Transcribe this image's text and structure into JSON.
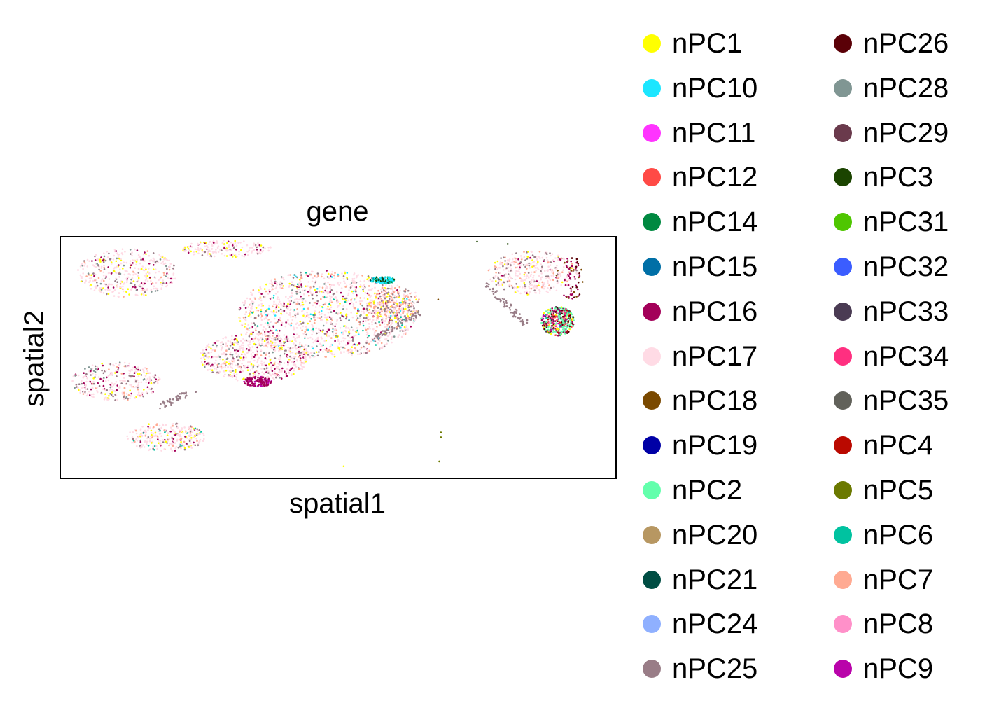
{
  "chart_data": {
    "type": "scatter",
    "title": "gene",
    "xlabel": "spatial1",
    "ylabel": "spatial2",
    "xlim": [
      0,
      100
    ],
    "ylim": [
      0,
      100
    ],
    "grid": false,
    "ticks": false,
    "legend_placement": "right",
    "legend_columns": 2,
    "series": [
      {
        "name": "nPC1",
        "color": "#ffff00"
      },
      {
        "name": "nPC10",
        "color": "#1ce6ff"
      },
      {
        "name": "nPC11",
        "color": "#ff34ff"
      },
      {
        "name": "nPC12",
        "color": "#ff4a46"
      },
      {
        "name": "nPC14",
        "color": "#008941"
      },
      {
        "name": "nPC15",
        "color": "#006fa6"
      },
      {
        "name": "nPC16",
        "color": "#a30059"
      },
      {
        "name": "nPC17",
        "color": "#ffdbe5"
      },
      {
        "name": "nPC18",
        "color": "#7a4900"
      },
      {
        "name": "nPC19",
        "color": "#0000a6"
      },
      {
        "name": "nPC2",
        "color": "#63ffac"
      },
      {
        "name": "nPC20",
        "color": "#b79762"
      },
      {
        "name": "nPC21",
        "color": "#004d43"
      },
      {
        "name": "nPC24",
        "color": "#8fb0ff"
      },
      {
        "name": "nPC25",
        "color": "#997d87"
      },
      {
        "name": "nPC26",
        "color": "#5a0007"
      },
      {
        "name": "nPC28",
        "color": "#809693"
      },
      {
        "name": "nPC29",
        "color": "#6a3a4c"
      },
      {
        "name": "nPC3",
        "color": "#1b4400"
      },
      {
        "name": "nPC31",
        "color": "#4fc601"
      },
      {
        "name": "nPC32",
        "color": "#3b5dff"
      },
      {
        "name": "nPC33",
        "color": "#4a3b53"
      },
      {
        "name": "nPC34",
        "color": "#ff2f80"
      },
      {
        "name": "nPC35",
        "color": "#61615a"
      },
      {
        "name": "nPC4",
        "color": "#ba0900"
      },
      {
        "name": "nPC5",
        "color": "#6b7900"
      },
      {
        "name": "nPC6",
        "color": "#00c2a0"
      },
      {
        "name": "nPC7",
        "color": "#ffaa92"
      },
      {
        "name": "nPC8",
        "color": "#ff90c9"
      },
      {
        "name": "nPC9",
        "color": "#b903aa"
      }
    ],
    "regions": [
      {
        "cx": 12,
        "cy": 85,
        "rx": 9,
        "ry": 10,
        "n": 420,
        "mix": {
          "nPC17": 0.62,
          "nPC16": 0.1,
          "nPC1": 0.1,
          "nPC25": 0.08,
          "nPC7": 0.05,
          "nPC28": 0.05
        }
      },
      {
        "cx": 30,
        "cy": 95,
        "rx": 8,
        "ry": 3.5,
        "n": 180,
        "mix": {
          "nPC17": 0.7,
          "nPC16": 0.1,
          "nPC1": 0.1,
          "nPC25": 0.1
        }
      },
      {
        "cx": 48,
        "cy": 68,
        "rx": 16,
        "ry": 18,
        "n": 1300,
        "mix": {
          "nPC17": 0.52,
          "nPC7": 0.12,
          "nPC1": 0.08,
          "nPC16": 0.08,
          "nPC25": 0.1,
          "nPC6": 0.03,
          "nPC10": 0.03,
          "nPC28": 0.04
        }
      },
      {
        "cx": 35,
        "cy": 50,
        "rx": 10,
        "ry": 10,
        "n": 620,
        "mix": {
          "nPC17": 0.58,
          "nPC16": 0.12,
          "nPC25": 0.12,
          "nPC1": 0.08,
          "nPC7": 0.05,
          "nPC28": 0.05
        }
      },
      {
        "cx": 60,
        "cy": 72,
        "rx": 5,
        "ry": 8,
        "n": 280,
        "mix": {
          "nPC7": 0.35,
          "nPC17": 0.3,
          "nPC25": 0.25,
          "nPC1": 0.1
        }
      },
      {
        "cx": 35.5,
        "cy": 40,
        "rx": 2.5,
        "ry": 2.2,
        "n": 130,
        "mix": {
          "nPC16": 0.8,
          "nPC9": 0.2
        }
      },
      {
        "cx": 58,
        "cy": 82,
        "rx": 2.2,
        "ry": 1.5,
        "n": 130,
        "mix": {
          "nPC10": 0.5,
          "nPC6": 0.3,
          "nPC3": 0.1,
          "nPC21": 0.1
        }
      },
      {
        "cx": 10,
        "cy": 40,
        "rx": 8,
        "ry": 8,
        "n": 320,
        "mix": {
          "nPC17": 0.55,
          "nPC25": 0.2,
          "nPC16": 0.1,
          "nPC1": 0.05,
          "nPC28": 0.05,
          "nPC7": 0.05
        }
      },
      {
        "cx": 19,
        "cy": 17,
        "rx": 7,
        "ry": 6,
        "n": 290,
        "mix": {
          "nPC17": 0.6,
          "nPC1": 0.12,
          "nPC25": 0.1,
          "nPC7": 0.08,
          "nPC6": 0.05,
          "nPC16": 0.05
        }
      },
      {
        "cx": 85,
        "cy": 85,
        "rx": 8,
        "ry": 9,
        "n": 380,
        "mix": {
          "nPC17": 0.65,
          "nPC25": 0.15,
          "nPC7": 0.1,
          "nPC1": 0.05,
          "nPC16": 0.05
        }
      },
      {
        "cx": 89.5,
        "cy": 65,
        "rx": 3,
        "ry": 6,
        "n": 400,
        "mix": {
          "nPC2": 0.32,
          "nPC16": 0.12,
          "nPC26": 0.08,
          "nPC33": 0.07,
          "nPC4": 0.07,
          "nPC1": 0.08,
          "nPC8": 0.06,
          "nPC34": 0.04,
          "nPC6": 0.04,
          "nPC9": 0.04,
          "nPC12": 0.04,
          "nPC5": 0.04
        }
      },
      {
        "cx": 92,
        "cy": 82,
        "rx": 2,
        "ry": 10,
        "n": 60,
        "mix": {
          "nPC16": 0.5,
          "nPC18": 0.2,
          "nPC26": 0.3
        }
      }
    ],
    "trails": [
      {
        "x0": 77,
        "y0": 80,
        "x1": 84,
        "y1": 63,
        "n": 70,
        "color": "nPC25"
      },
      {
        "x0": 56,
        "y0": 57,
        "x1": 65,
        "y1": 69,
        "n": 60,
        "color": "nPC25"
      },
      {
        "x0": 24,
        "y0": 36,
        "x1": 18,
        "y1": 30,
        "n": 45,
        "color": "nPC25"
      }
    ],
    "extra_points": [
      {
        "x": 68,
        "y": 74,
        "series": "nPC18"
      },
      {
        "x": 68.5,
        "y": 19,
        "series": "nPC5"
      },
      {
        "x": 68.5,
        "y": 17,
        "series": "nPC5"
      },
      {
        "x": 68.2,
        "y": 7,
        "series": "nPC5"
      },
      {
        "x": 51,
        "y": 5,
        "series": "nPC1"
      },
      {
        "x": 75,
        "y": 98,
        "series": "nPC3"
      },
      {
        "x": 80.5,
        "y": 97,
        "series": "nPC3"
      },
      {
        "x": 89.5,
        "y": 86,
        "series": "nPC18"
      },
      {
        "x": 89.3,
        "y": 84,
        "series": "nPC18"
      }
    ]
  }
}
